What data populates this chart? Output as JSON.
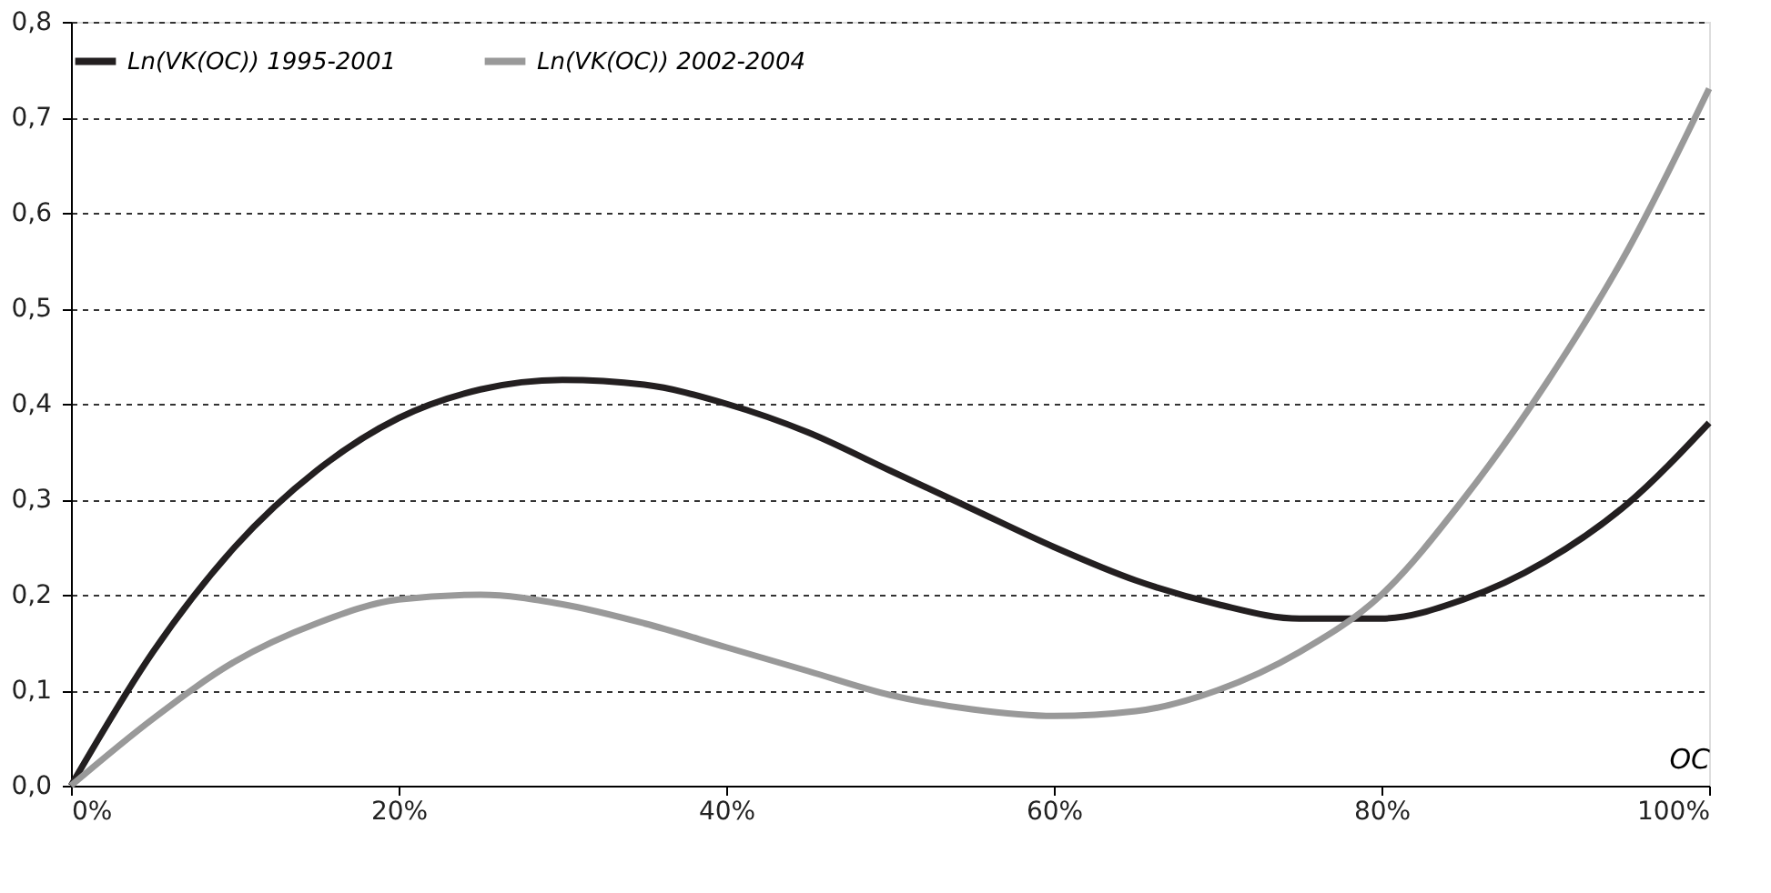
{
  "chart_data": {
    "type": "line",
    "xlabel": "OC",
    "x": [
      0,
      5,
      10,
      15,
      20,
      25,
      30,
      35,
      40,
      45,
      50,
      55,
      60,
      65,
      70,
      75,
      80,
      85,
      90,
      95,
      100
    ],
    "series": [
      {
        "name": "Ln(VK(OC)) 1995-2001",
        "color": "#231f20",
        "values": [
          0,
          0.14,
          0.25,
          0.33,
          0.385,
          0.415,
          0.425,
          0.42,
          0.4,
          0.37,
          0.33,
          0.29,
          0.25,
          0.215,
          0.19,
          0.175,
          0.175,
          0.195,
          0.235,
          0.295,
          0.38
        ]
      },
      {
        "name": "Ln(VK(OC)) 2002-2004",
        "color": "#999999",
        "values": [
          0,
          0.07,
          0.13,
          0.17,
          0.195,
          0.2,
          0.19,
          0.17,
          0.145,
          0.12,
          0.095,
          0.08,
          0.073,
          0.078,
          0.1,
          0.14,
          0.2,
          0.3,
          0.42,
          0.56,
          0.73
        ]
      }
    ],
    "xlim": [
      0,
      100
    ],
    "xticks": [
      {
        "value": 0,
        "label": "0%"
      },
      {
        "value": 20,
        "label": "20%"
      },
      {
        "value": 40,
        "label": "40%"
      },
      {
        "value": 60,
        "label": "60%"
      },
      {
        "value": 80,
        "label": "80%"
      },
      {
        "value": 100,
        "label": "100%"
      }
    ],
    "ylim": [
      0,
      0.8
    ],
    "yticks": [
      {
        "value": 0,
        "label": "0,0"
      },
      {
        "value": 0.1,
        "label": "0,1"
      },
      {
        "value": 0.2,
        "label": "0,2"
      },
      {
        "value": 0.3,
        "label": "0,3"
      },
      {
        "value": 0.4,
        "label": "0,4"
      },
      {
        "value": 0.5,
        "label": "0,5"
      },
      {
        "value": 0.6,
        "label": "0,6"
      },
      {
        "value": 0.7,
        "label": "0,7"
      },
      {
        "value": 0.8,
        "label": "0,8"
      }
    ],
    "grid": "y",
    "legend": "top",
    "marker": "none",
    "line_style": "solid"
  }
}
